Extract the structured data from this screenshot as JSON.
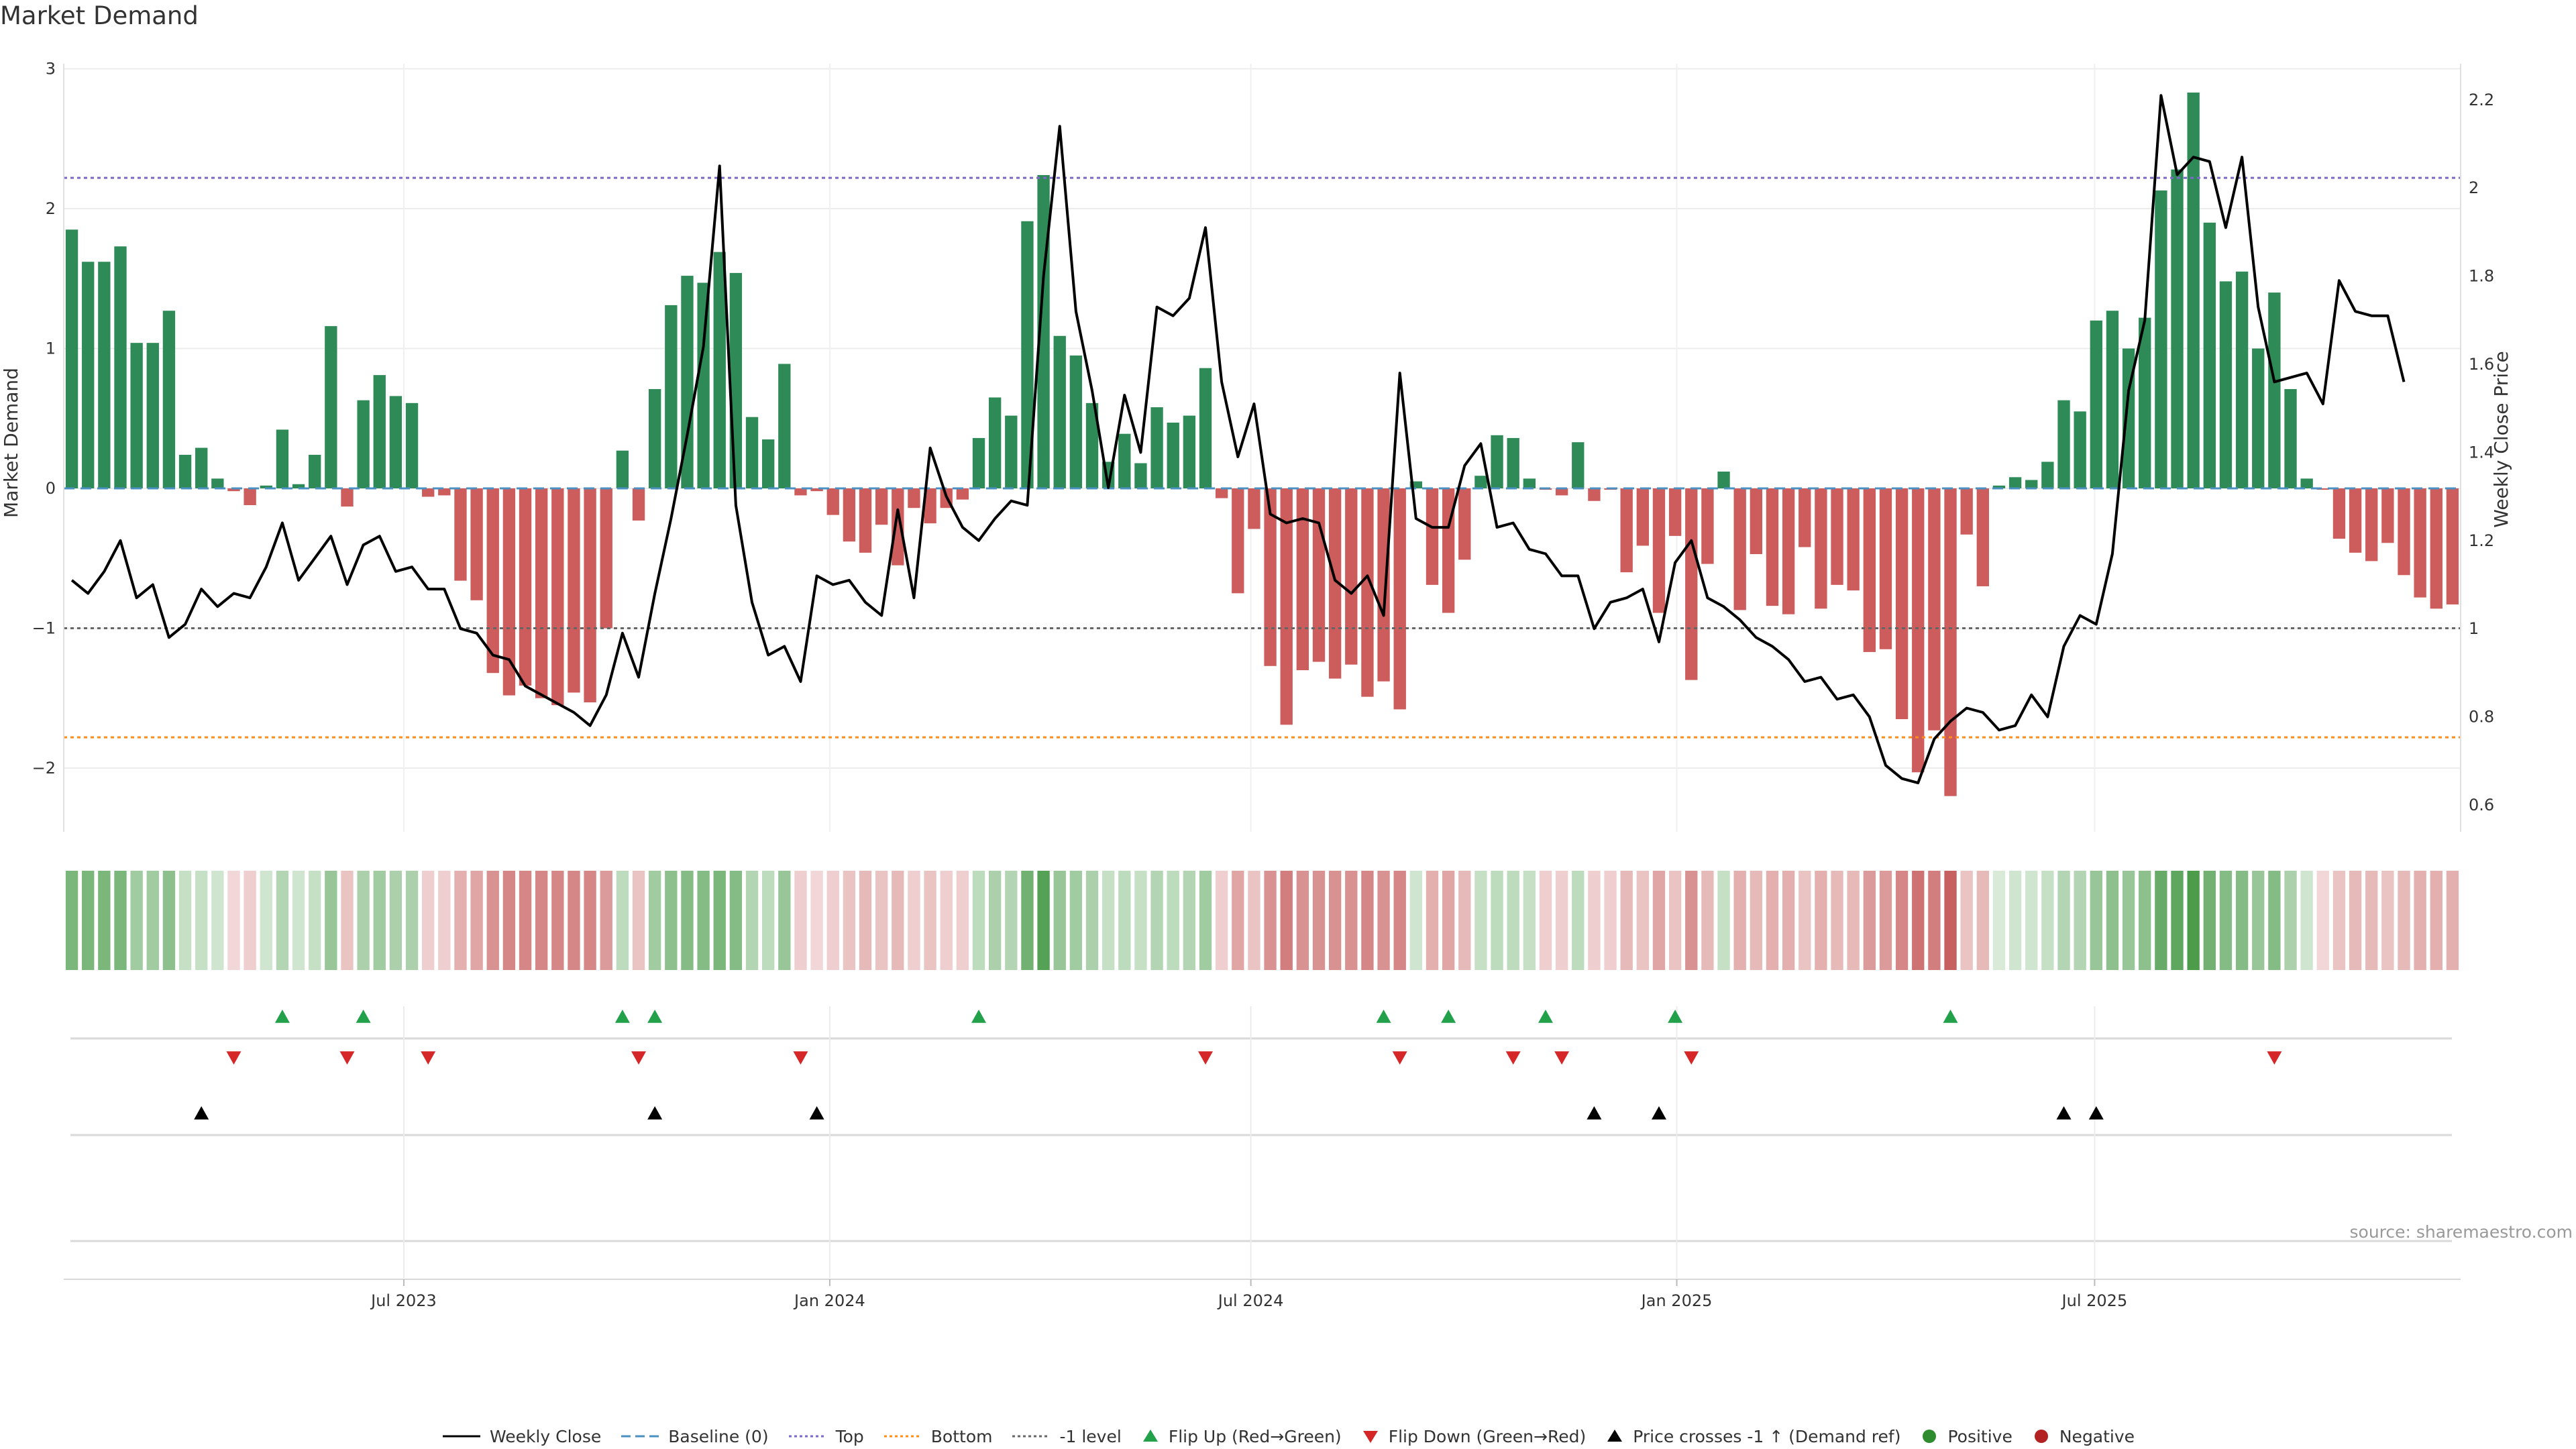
{
  "title": "Market Demand",
  "source": "source: sharemaestro.com",
  "colors": {
    "positive_bar": "#2e8b57",
    "negative_bar": "#cd5c5c",
    "price_line": "#000000",
    "baseline": "#4a90c2",
    "top": "#7b68c9",
    "bottom": "#ff8c1a",
    "minus1": "#666666",
    "flip_up": "#22a04a",
    "flip_down": "#d62728",
    "cross": "#000000",
    "positive_dot": "#2e8b2e",
    "negative_dot": "#b22222"
  },
  "legend": [
    {
      "key": "weekly_close",
      "label": "Weekly Close",
      "icon": "solid-line-icon"
    },
    {
      "key": "baseline",
      "label": "Baseline (0)",
      "icon": "dashed-line-icon"
    },
    {
      "key": "top",
      "label": "Top",
      "icon": "dotted-line-icon"
    },
    {
      "key": "bottom",
      "label": "Bottom",
      "icon": "dotted-line-icon"
    },
    {
      "key": "minus1",
      "label": "-1 level",
      "icon": "dotted-line-icon"
    },
    {
      "key": "flip_up",
      "label": "Flip Up (Red→Green)",
      "icon": "triangle-up-icon"
    },
    {
      "key": "flip_down",
      "label": "Flip Down (Green→Red)",
      "icon": "triangle-down-icon"
    },
    {
      "key": "cross",
      "label": "Price crosses -1 ↑ (Demand ref)",
      "icon": "triangle-up-icon"
    },
    {
      "key": "positive",
      "label": "Positive",
      "icon": "circle-icon"
    },
    {
      "key": "negative",
      "label": "Negative",
      "icon": "circle-icon"
    }
  ],
  "chart_data": {
    "type": "bar",
    "title": "Market Demand",
    "ylabel": "Market Demand",
    "y2label": "Weekly Close Price",
    "ylim": [
      -2.5,
      3.0
    ],
    "y2lim": [
      0.55,
      2.3
    ],
    "yticks": [
      3,
      2,
      1,
      0,
      -1,
      -2
    ],
    "y2ticks": [
      2.2,
      2.0,
      1.8,
      1.6,
      1.4,
      1.2,
      1.0,
      0.8,
      0.6
    ],
    "xticks": [
      {
        "label": "Jul 2023",
        "week": 21
      },
      {
        "label": "Jan 2024",
        "week": 47.3
      },
      {
        "label": "Jul 2024",
        "week": 73.3
      },
      {
        "label": "Jan 2025",
        "week": 99.6
      },
      {
        "label": "Jul 2025",
        "week": 125.4
      }
    ],
    "reference_lines": {
      "top": 2.22,
      "bottom": -1.78,
      "minus1": -1.0,
      "baseline": 0
    },
    "demand": [
      1.85,
      1.62,
      1.62,
      1.73,
      1.04,
      1.04,
      1.27,
      0.24,
      0.29,
      0.07,
      -0.02,
      -0.12,
      0.02,
      0.42,
      0.03,
      0.24,
      1.16,
      -0.13,
      0.63,
      0.81,
      0.66,
      0.61,
      -0.06,
      -0.05,
      -0.66,
      -0.8,
      -1.32,
      -1.48,
      -1.41,
      -1.5,
      -1.55,
      -1.46,
      -1.53,
      -1.0,
      0.27,
      -0.23,
      0.71,
      1.31,
      1.52,
      1.47,
      1.69,
      1.54,
      0.51,
      0.35,
      0.89,
      -0.05,
      -0.02,
      -0.19,
      -0.38,
      -0.46,
      -0.26,
      -0.55,
      -0.14,
      -0.25,
      -0.14,
      -0.08,
      0.36,
      0.65,
      0.52,
      1.91,
      2.24,
      1.09,
      0.95,
      0.61,
      0.19,
      0.39,
      0.18,
      0.58,
      0.47,
      0.52,
      0.86,
      -0.07,
      -0.75,
      -0.29,
      -1.27,
      -1.69,
      -1.3,
      -1.24,
      -1.36,
      -1.26,
      -1.49,
      -1.38,
      -1.58,
      0.05,
      -0.69,
      -0.89,
      -0.51,
      0.09,
      0.38,
      0.36,
      0.07,
      -0.01,
      -0.05,
      0.33,
      -0.09,
      -0.01,
      -0.6,
      -0.41,
      -0.89,
      -0.34,
      -1.37,
      -0.54,
      0.12,
      -0.87,
      -0.47,
      -0.84,
      -0.9,
      -0.42,
      -0.86,
      -0.69,
      -0.73,
      -1.17,
      -1.15,
      -1.65,
      -2.03,
      -1.73,
      -2.2,
      -0.33,
      -0.7,
      0.02,
      0.08,
      0.06,
      0.19,
      0.63,
      0.55,
      1.2,
      1.27,
      1.0,
      1.22,
      2.13,
      2.28,
      2.83,
      1.9,
      1.48,
      1.55,
      1.0,
      1.4,
      0.71,
      0.07,
      -0.01,
      -0.36,
      -0.46,
      -0.52,
      -0.39,
      -0.62,
      -0.78,
      -0.86,
      -0.83
    ],
    "price": [
      1.11,
      1.08,
      1.13,
      1.2,
      1.07,
      1.1,
      0.98,
      1.01,
      1.09,
      1.05,
      1.08,
      1.07,
      1.14,
      1.24,
      1.11,
      1.16,
      1.21,
      1.1,
      1.19,
      1.21,
      1.13,
      1.14,
      1.09,
      1.09,
      1.0,
      0.99,
      0.94,
      0.93,
      0.87,
      0.85,
      0.83,
      0.81,
      0.78,
      0.85,
      0.99,
      0.89,
      1.08,
      1.25,
      1.44,
      1.64,
      2.05,
      1.28,
      1.06,
      0.94,
      0.96,
      0.88,
      1.12,
      1.1,
      1.11,
      1.06,
      1.03,
      1.27,
      1.07,
      1.41,
      1.3,
      1.23,
      1.2,
      1.25,
      1.29,
      1.28,
      1.8,
      2.14,
      1.72,
      1.54,
      1.32,
      1.53,
      1.4,
      1.73,
      1.71,
      1.75,
      1.91,
      1.56,
      1.39,
      1.51,
      1.26,
      1.24,
      1.25,
      1.24,
      1.11,
      1.08,
      1.12,
      1.03,
      1.58,
      1.25,
      1.23,
      1.23,
      1.37,
      1.42,
      1.23,
      1.24,
      1.18,
      1.17,
      1.12,
      1.12,
      1.0,
      1.06,
      1.07,
      1.09,
      0.97,
      1.15,
      1.2,
      1.07,
      1.05,
      1.02,
      0.98,
      0.96,
      0.93,
      0.88,
      0.89,
      0.84,
      0.85,
      0.8,
      0.69,
      0.66,
      0.65,
      0.75,
      0.79,
      0.82,
      0.81,
      0.77,
      0.78,
      0.85,
      0.8,
      0.96,
      1.03,
      1.01,
      1.17,
      1.54,
      1.7,
      2.21,
      2.03,
      2.07,
      2.06,
      1.91,
      2.07,
      1.73,
      1.56,
      1.57,
      1.58,
      1.51,
      1.79,
      1.72,
      1.71,
      1.71,
      1.56
    ],
    "heat_intensity": [
      0.7,
      0.7,
      0.7,
      0.7,
      0.5,
      0.5,
      0.6,
      0.3,
      0.3,
      0.25,
      0.2,
      0.25,
      0.25,
      0.4,
      0.25,
      0.3,
      0.55,
      0.3,
      0.45,
      0.5,
      0.45,
      0.45,
      0.25,
      0.25,
      0.4,
      0.45,
      0.55,
      0.6,
      0.6,
      0.6,
      0.6,
      0.6,
      0.6,
      0.5,
      0.35,
      0.3,
      0.5,
      0.6,
      0.65,
      0.65,
      0.7,
      0.65,
      0.4,
      0.35,
      0.55,
      0.25,
      0.2,
      0.25,
      0.3,
      0.35,
      0.3,
      0.35,
      0.25,
      0.3,
      0.25,
      0.25,
      0.35,
      0.45,
      0.4,
      0.75,
      0.9,
      0.55,
      0.5,
      0.45,
      0.3,
      0.35,
      0.3,
      0.4,
      0.35,
      0.4,
      0.5,
      0.25,
      0.45,
      0.3,
      0.55,
      0.65,
      0.55,
      0.55,
      0.55,
      0.55,
      0.6,
      0.55,
      0.6,
      0.25,
      0.4,
      0.45,
      0.35,
      0.3,
      0.35,
      0.35,
      0.3,
      0.25,
      0.25,
      0.35,
      0.25,
      0.25,
      0.35,
      0.3,
      0.45,
      0.3,
      0.55,
      0.35,
      0.3,
      0.4,
      0.35,
      0.4,
      0.4,
      0.3,
      0.4,
      0.35,
      0.35,
      0.5,
      0.5,
      0.6,
      0.7,
      0.65,
      0.8,
      0.3,
      0.35,
      0.2,
      0.25,
      0.25,
      0.3,
      0.4,
      0.4,
      0.55,
      0.6,
      0.55,
      0.6,
      0.8,
      0.85,
      0.95,
      0.75,
      0.65,
      0.65,
      0.55,
      0.65,
      0.45,
      0.25,
      0.2,
      0.3,
      0.35,
      0.35,
      0.3,
      0.35,
      0.4,
      0.4,
      0.4
    ],
    "flip_up_weeks": [
      13,
      18,
      34,
      36,
      56,
      81,
      85,
      91,
      99,
      116
    ],
    "flip_down_weeks": [
      10,
      17,
      22,
      35,
      45,
      70,
      82,
      89,
      92,
      100,
      136
    ],
    "price_cross_weeks": [
      8,
      36,
      46,
      94,
      98,
      123,
      125
    ]
  }
}
